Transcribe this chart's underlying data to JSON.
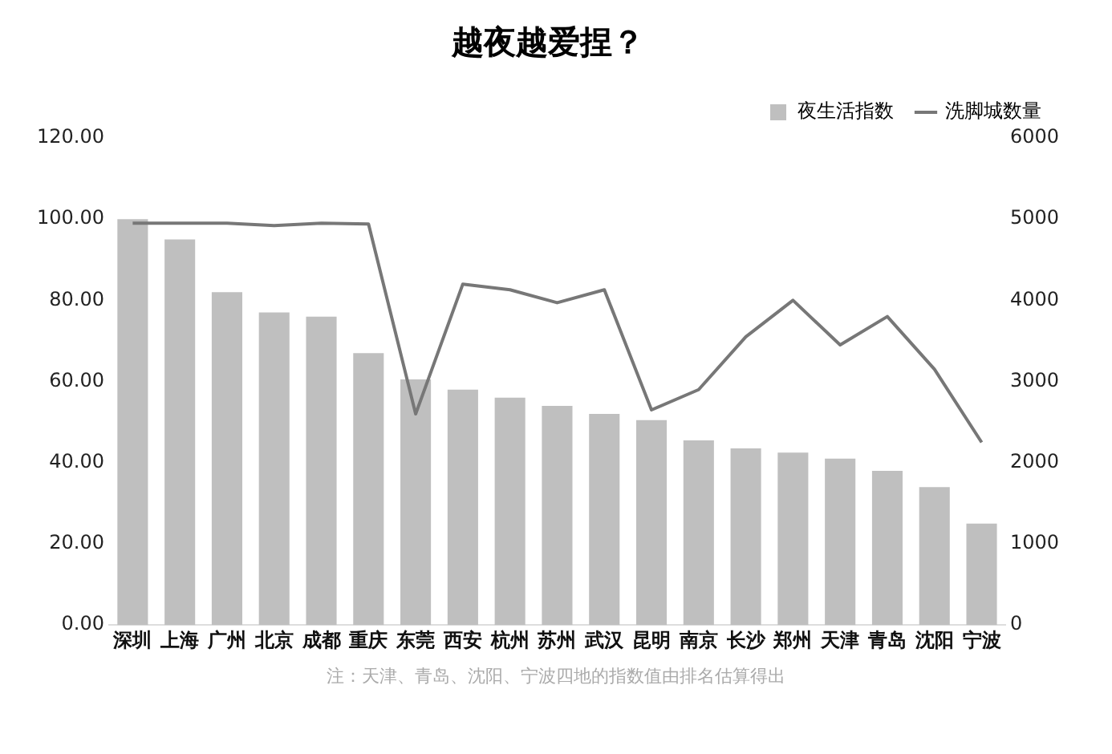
{
  "chart_data": {
    "type": "bar",
    "title": "越夜越爱捏？",
    "categories": [
      "深圳",
      "上海",
      "广州",
      "北京",
      "成都",
      "重庆",
      "东莞",
      "西安",
      "杭州",
      "苏州",
      "武汉",
      "昆明",
      "南京",
      "长沙",
      "郑州",
      "天津",
      "青岛",
      "沈阳",
      "宁波"
    ],
    "series": [
      {
        "name": "夜生活指数",
        "color": "#bfbfbf",
        "values": [
          100,
          95,
          82,
          77,
          76,
          67,
          60.5,
          58,
          56,
          54,
          52,
          50.5,
          45.5,
          43.5,
          42.5,
          41,
          38,
          34,
          25
        ]
      },
      {
        "name": "洗脚城数量",
        "type": "line",
        "axis": "y2",
        "color": "#777777",
        "values": [
          4950,
          4950,
          4950,
          4920,
          4950,
          4940,
          2600,
          4200,
          4130,
          3970,
          4130,
          2650,
          2900,
          3550,
          4000,
          3450,
          3800,
          3150,
          2250
        ]
      }
    ],
    "ylim": [
      0,
      120
    ],
    "yticks": [
      {
        "value": 0,
        "label": "0.00"
      },
      {
        "value": 20,
        "label": "20.00"
      },
      {
        "value": 40,
        "label": "40.00"
      },
      {
        "value": 60,
        "label": "60.00"
      },
      {
        "value": 80,
        "label": "80.00"
      },
      {
        "value": 100,
        "label": "100.00"
      },
      {
        "value": 120,
        "label": "120.00"
      }
    ],
    "y2lim": [
      0,
      6000
    ],
    "y2ticks": [
      0,
      1000,
      2000,
      3000,
      4000,
      5000,
      6000
    ],
    "grid": false,
    "legend": "top right",
    "marker": "none",
    "line_style": "solid",
    "annotations": [
      "注：天津、青岛、沈阳、宁波四地的指数值由排名估算得出"
    ]
  }
}
